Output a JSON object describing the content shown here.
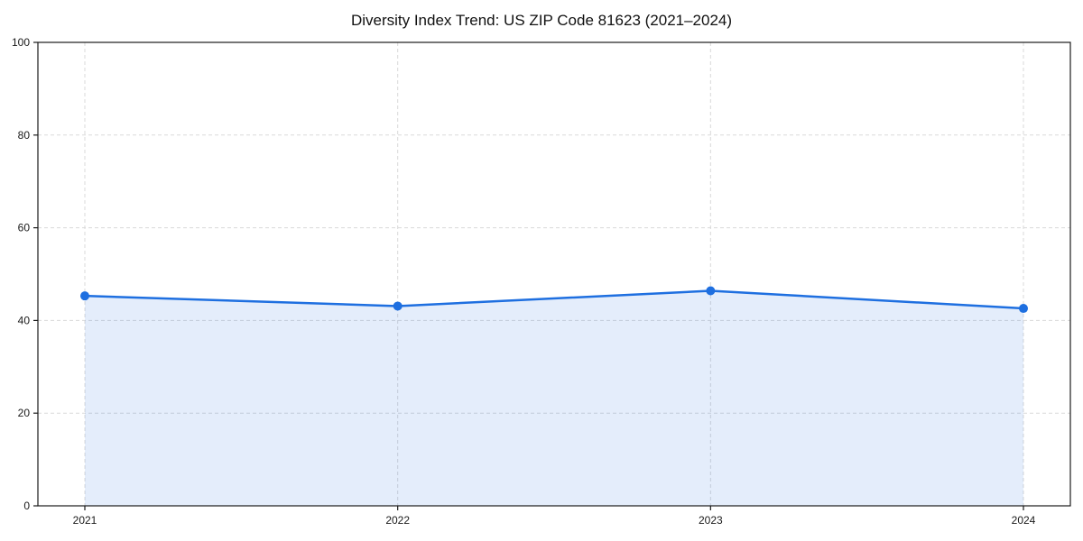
{
  "chart_data": {
    "type": "area",
    "title": "Diversity Index Trend: US ZIP Code 81623 (2021–2024)",
    "categories": [
      "2021",
      "2022",
      "2023",
      "2024"
    ],
    "x": [
      2021,
      2022,
      2023,
      2024
    ],
    "values": [
      45.3,
      43.1,
      46.4,
      42.6
    ],
    "xlabel": "",
    "ylabel": "",
    "ylim": [
      0,
      100
    ],
    "yticks": [
      0,
      20,
      40,
      60,
      80,
      100
    ],
    "grid": "dashed",
    "legend": "none",
    "marker": "circle",
    "colors": {
      "line": "#1e6fe0",
      "marker": "#1e6fe0",
      "fill": "#1e6fe0",
      "fill_opacity": 0.12,
      "grid": "#d9d9d9",
      "spine": "#1a1a1a",
      "tick_text": "#1a1a1a",
      "background": "#ffffff"
    }
  }
}
